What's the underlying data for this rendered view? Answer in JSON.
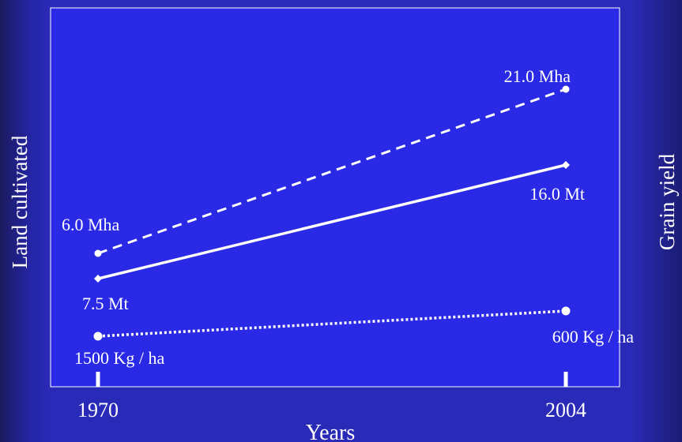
{
  "chart_data": {
    "type": "line",
    "categories": [
      "1970",
      "2004"
    ],
    "xlabel": "Years",
    "left_axis_label": "Land cultivated",
    "right_axis_label": "Grain yield",
    "series": [
      {
        "style": "dashed",
        "values": [
          6.0,
          21.0
        ],
        "point_labels": [
          "6.0 Mha",
          "21.0 Mha"
        ],
        "marker": "circle"
      },
      {
        "style": "solid",
        "values": [
          7.5,
          16.0
        ],
        "point_labels": [
          "7.5 Mt",
          "16.0 Mt"
        ],
        "marker": "diamond"
      },
      {
        "style": "dotted",
        "values": [
          1500,
          600
        ],
        "point_labels": [
          "1500 Kg / ha",
          "600 Kg / ha"
        ],
        "marker": "circle"
      }
    ],
    "colors": {
      "background": "#2a2ab8",
      "plot": "#2a2ae6",
      "lines": "#ffffff"
    }
  }
}
